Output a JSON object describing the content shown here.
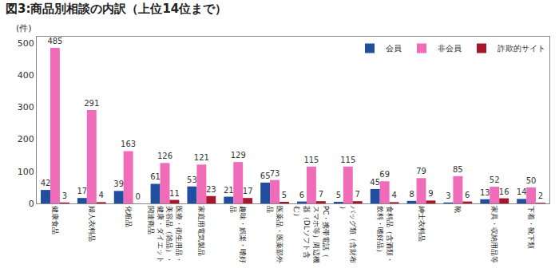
{
  "chart_data": {
    "type": "bar",
    "title": "図3:商品別相談の内訳（上位14位まで）",
    "ylabel": "(件)",
    "categories": [
      "健康食品",
      "婦人衣料品",
      "化粧品",
      "医療・衛生用品・美容品（雑品）・健康・ダイエット関連商品",
      "家庭用電気製品",
      "趣味・娯楽・嗜好品",
      "医薬品・医薬部外品",
      "PC・携帯電話（スマホ等）周辺機器（DLソフト含む）",
      "バッグ類（含財布）",
      "食料品（含酒類・飲料・嗜好品）",
      "紳士衣料品",
      "靴",
      "家具・収納用品等",
      "下着・靴下類"
    ],
    "series": [
      {
        "name": "会員",
        "color": "#1f4f9e",
        "values": [
          42,
          17,
          39,
          61,
          53,
          21,
          65,
          6,
          5,
          45,
          8,
          3,
          13,
          14
        ]
      },
      {
        "name": "非会員",
        "color": "#f06cb8",
        "values": [
          485,
          291,
          163,
          126,
          121,
          129,
          73,
          115,
          115,
          69,
          79,
          85,
          52,
          50
        ]
      },
      {
        "name": "詐欺的サイト",
        "color": "#a8162c",
        "values": [
          3,
          4,
          0,
          11,
          23,
          17,
          5,
          7,
          7,
          4,
          9,
          6,
          16,
          2
        ]
      }
    ],
    "ylim": [
      0,
      520
    ],
    "yticks": [
      0,
      100,
      200,
      300,
      400,
      500
    ],
    "grid": false,
    "legend": "top-right",
    "data_labels": true
  }
}
